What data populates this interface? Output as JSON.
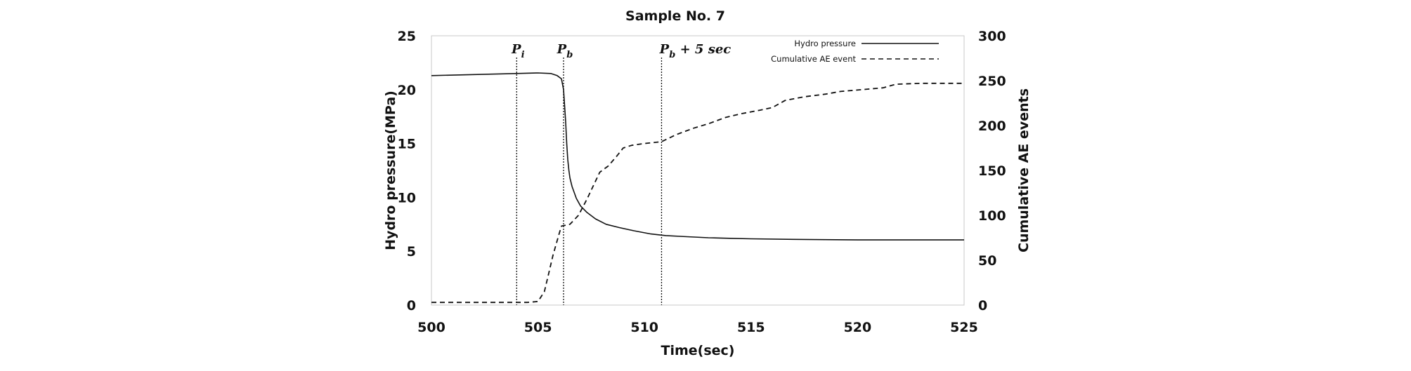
{
  "chart_data": {
    "type": "line",
    "title": "Sample No. 7",
    "xlabel": "Time(sec)",
    "ylabel": "Hydro pressure(MPa)",
    "y2label": "Cumulative AE events",
    "xlim": [
      500,
      525
    ],
    "ylim": [
      0,
      25
    ],
    "y2lim": [
      0,
      300
    ],
    "xticks": [
      500,
      505,
      510,
      515,
      520,
      525
    ],
    "yticks": [
      0,
      5,
      10,
      15,
      20,
      25
    ],
    "y2ticks": [
      0,
      50,
      100,
      150,
      200,
      250,
      300
    ],
    "grid": false,
    "legend_position": "top-right",
    "markers": [
      {
        "label": "P_i",
        "x": 504.0
      },
      {
        "label": "P_b",
        "x": 506.2
      },
      {
        "label": "P_b + 5 sec",
        "x": 510.8
      }
    ],
    "series": [
      {
        "name": "Hydro pressure",
        "axis": "left",
        "style": "solid",
        "color": "#111111",
        "x": [
          500,
          502,
          504,
          505,
          505.6,
          505.9,
          506.1,
          506.2,
          506.25,
          506.3,
          506.35,
          506.4,
          506.45,
          506.5,
          506.6,
          506.8,
          507,
          507.3,
          507.7,
          508.2,
          508.8,
          509.5,
          510.3,
          511,
          512,
          513,
          514,
          515,
          517,
          520,
          522,
          525
        ],
        "y": [
          21.3,
          21.4,
          21.5,
          21.55,
          21.5,
          21.3,
          21.0,
          20.0,
          18.5,
          17.0,
          15.0,
          13.5,
          12.5,
          11.8,
          11.0,
          9.9,
          9.2,
          8.6,
          8.0,
          7.5,
          7.2,
          6.9,
          6.6,
          6.45,
          6.35,
          6.25,
          6.2,
          6.15,
          6.1,
          6.05,
          6.05,
          6.05
        ]
      },
      {
        "name": "Cumulative AE event",
        "axis": "right",
        "style": "dashed",
        "color": "#111111",
        "x": [
          500,
          504.5,
          505,
          505.3,
          505.5,
          505.7,
          506,
          506.1,
          506.5,
          506.9,
          507.3,
          507.6,
          507.9,
          508.3,
          508.7,
          509,
          509.4,
          510,
          510.8,
          511.5,
          512.3,
          513,
          513.8,
          514.5,
          515.4,
          516,
          516.6,
          517.5,
          518.5,
          519.2,
          520.2,
          521.2,
          521.8,
          523,
          525
        ],
        "y": [
          3,
          3,
          4,
          15,
          35,
          55,
          80,
          88,
          90,
          100,
          118,
          133,
          148,
          155,
          166,
          175,
          178,
          180,
          182,
          190,
          197,
          202,
          209,
          213,
          217,
          220,
          228,
          232,
          235,
          238,
          240,
          242,
          246,
          247,
          247
        ]
      }
    ]
  }
}
